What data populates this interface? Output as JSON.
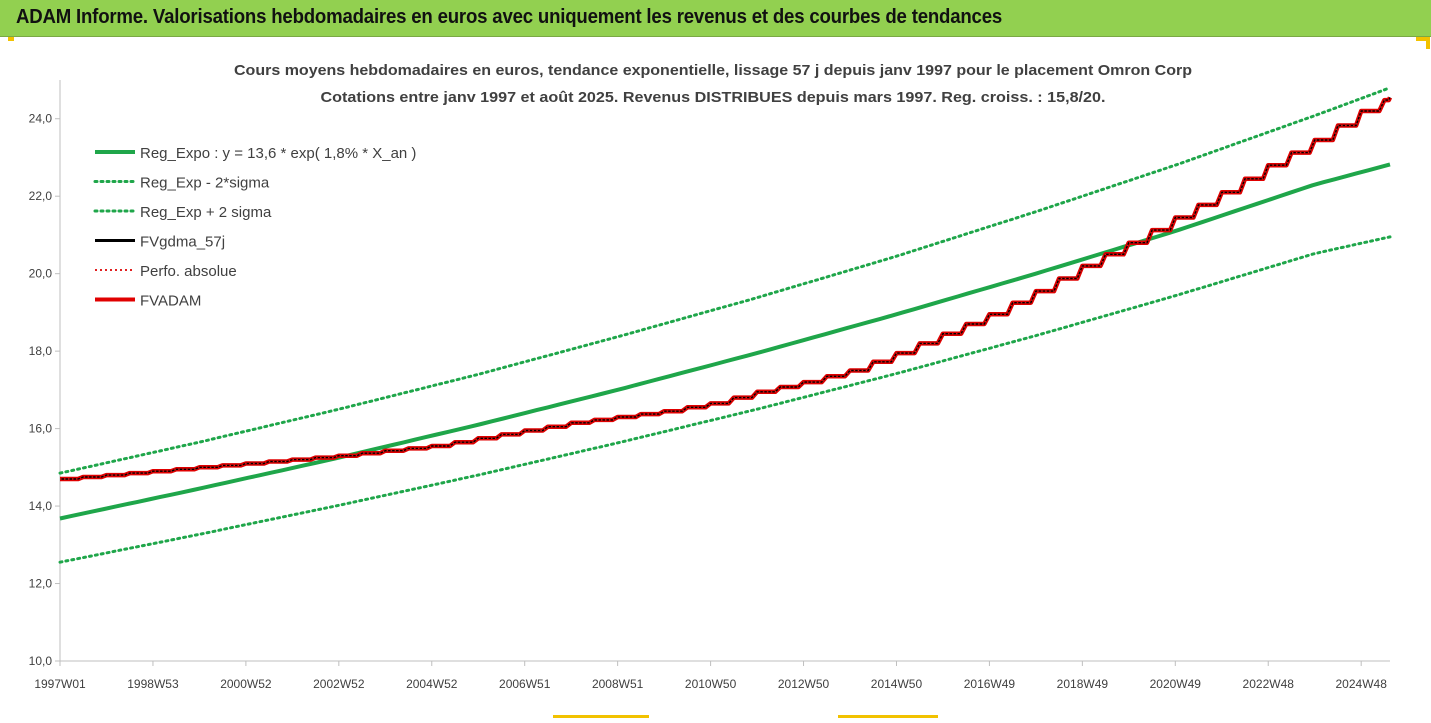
{
  "header": {
    "title": "ADAM Informe. Valorisations hebdomadaires en euros avec uniquement les revenus et des courbes de tendances"
  },
  "colors": {
    "header_bg": "#92d050",
    "reg_expo": "#1fa64a",
    "fvgdma": "#000000",
    "perfo": "#e02020",
    "fvadam": "#e00000",
    "corner_accent": "#f2c200"
  },
  "chart_data": {
    "type": "line",
    "title": "Cours moyens hebdomadaires en euros, tendance exponentielle, lissage 57 j depuis janv 1997 pour le placement Omron Corp",
    "subtitle": "Cotations entre janv 1997 et août 2025. Revenus DISTRIBUES depuis mars 1997. Reg. croiss. : 15,8/20.",
    "x_range": [
      1997.0,
      2025.62
    ],
    "ylim": [
      10,
      25
    ],
    "y_ticks": [
      "10,0",
      "12,0",
      "14,0",
      "16,0",
      "18,0",
      "20,0",
      "22,0",
      "24,0"
    ],
    "y_tick_values": [
      10,
      12,
      14,
      16,
      18,
      20,
      22,
      24
    ],
    "x_ticks": [
      "1997W01",
      "1998W53",
      "2000W52",
      "2002W52",
      "2004W52",
      "2006W51",
      "2008W51",
      "2010W50",
      "2012W50",
      "2014W50",
      "2016W49",
      "2018W49",
      "2020W49",
      "2022W48",
      "2024W48"
    ],
    "x_tick_values": [
      1997.0,
      1999.0,
      2001.0,
      2003.0,
      2005.0,
      2007.0,
      2009.0,
      2011.0,
      2013.0,
      2015.0,
      2017.0,
      2019.0,
      2021.0,
      2023.0,
      2025.0
    ],
    "grid": false,
    "legend_position": "top-left",
    "series": [
      {
        "name": "Reg_Expo : y = 13,6 * exp( 1,8% *  X_an )",
        "style": "solid-thick",
        "color": "#1fa64a",
        "x": [
          1997.0,
          2000.0,
          2003.0,
          2006.0,
          2009.0,
          2012.0,
          2015.0,
          2018.0,
          2021.0,
          2024.0,
          2025.62
        ],
        "values": [
          13.68,
          14.45,
          15.25,
          16.1,
          17.0,
          17.95,
          18.95,
          20.0,
          21.1,
          22.3,
          22.82
        ]
      },
      {
        "name": "Reg_Exp - 2*sigma",
        "style": "dotted",
        "color": "#1fa64a",
        "x": [
          1997.0,
          2000.0,
          2003.0,
          2006.0,
          2009.0,
          2012.0,
          2015.0,
          2018.0,
          2021.0,
          2024.0,
          2025.62
        ],
        "values": [
          12.55,
          13.27,
          14.02,
          14.8,
          15.63,
          16.5,
          17.42,
          18.4,
          19.43,
          20.52,
          20.95
        ]
      },
      {
        "name": "Reg_Exp + 2 sigma",
        "style": "dotted",
        "color": "#1fa64a",
        "x": [
          1997.0,
          2000.0,
          2003.0,
          2006.0,
          2009.0,
          2012.0,
          2015.0,
          2018.0,
          2021.0,
          2024.0,
          2025.62
        ],
        "values": [
          14.85,
          15.65,
          16.5,
          17.4,
          18.37,
          19.38,
          20.45,
          21.6,
          22.8,
          24.08,
          24.8
        ]
      },
      {
        "name": "FVgdma_57j",
        "style": "solid",
        "color": "#000000",
        "x": [
          1997.0,
          1999.0,
          2001.0,
          2003.0,
          2004.0,
          2005.0,
          2006.0,
          2007.0,
          2008.0,
          2009.0,
          2010.0,
          2011.0,
          2012.0,
          2013.0,
          2014.0,
          2015.0,
          2016.0,
          2017.0,
          2018.0,
          2019.0,
          2020.0,
          2021.0,
          2022.0,
          2023.0,
          2024.0,
          2025.0,
          2025.62
        ],
        "values": [
          14.7,
          14.9,
          15.1,
          15.3,
          15.43,
          15.55,
          15.75,
          15.95,
          16.15,
          16.3,
          16.45,
          16.65,
          16.95,
          17.2,
          17.5,
          17.95,
          18.45,
          18.95,
          19.55,
          20.2,
          20.8,
          21.45,
          22.1,
          22.8,
          23.45,
          24.2,
          24.55
        ]
      },
      {
        "name": "Perfo. absolue",
        "style": "dotted",
        "color": "#e02020",
        "x": [
          1997.0,
          1999.0,
          2001.0,
          2003.0,
          2004.0,
          2005.0,
          2006.0,
          2007.0,
          2008.0,
          2009.0,
          2010.0,
          2011.0,
          2012.0,
          2013.0,
          2014.0,
          2015.0,
          2016.0,
          2017.0,
          2018.0,
          2019.0,
          2020.0,
          2021.0,
          2022.0,
          2023.0,
          2024.0,
          2025.0,
          2025.62
        ],
        "values": [
          14.7,
          14.9,
          15.1,
          15.3,
          15.43,
          15.55,
          15.75,
          15.95,
          16.15,
          16.3,
          16.45,
          16.65,
          16.95,
          17.2,
          17.5,
          17.95,
          18.45,
          18.95,
          19.55,
          20.2,
          20.8,
          21.45,
          22.1,
          22.8,
          23.45,
          24.2,
          24.55
        ]
      },
      {
        "name": "FVADAM",
        "style": "step-thick",
        "color": "#e00000",
        "x": [
          1997.0,
          1999.0,
          2001.0,
          2003.0,
          2004.0,
          2005.0,
          2006.0,
          2007.0,
          2008.0,
          2009.0,
          2010.0,
          2011.0,
          2012.0,
          2013.0,
          2014.0,
          2015.0,
          2016.0,
          2017.0,
          2018.0,
          2019.0,
          2020.0,
          2021.0,
          2022.0,
          2023.0,
          2024.0,
          2025.0,
          2025.62
        ],
        "values": [
          14.7,
          14.9,
          15.1,
          15.3,
          15.43,
          15.55,
          15.75,
          15.95,
          16.15,
          16.3,
          16.45,
          16.65,
          16.95,
          17.2,
          17.5,
          17.95,
          18.45,
          18.95,
          19.55,
          20.2,
          20.8,
          21.45,
          22.1,
          22.8,
          23.45,
          24.2,
          24.55
        ]
      }
    ]
  }
}
